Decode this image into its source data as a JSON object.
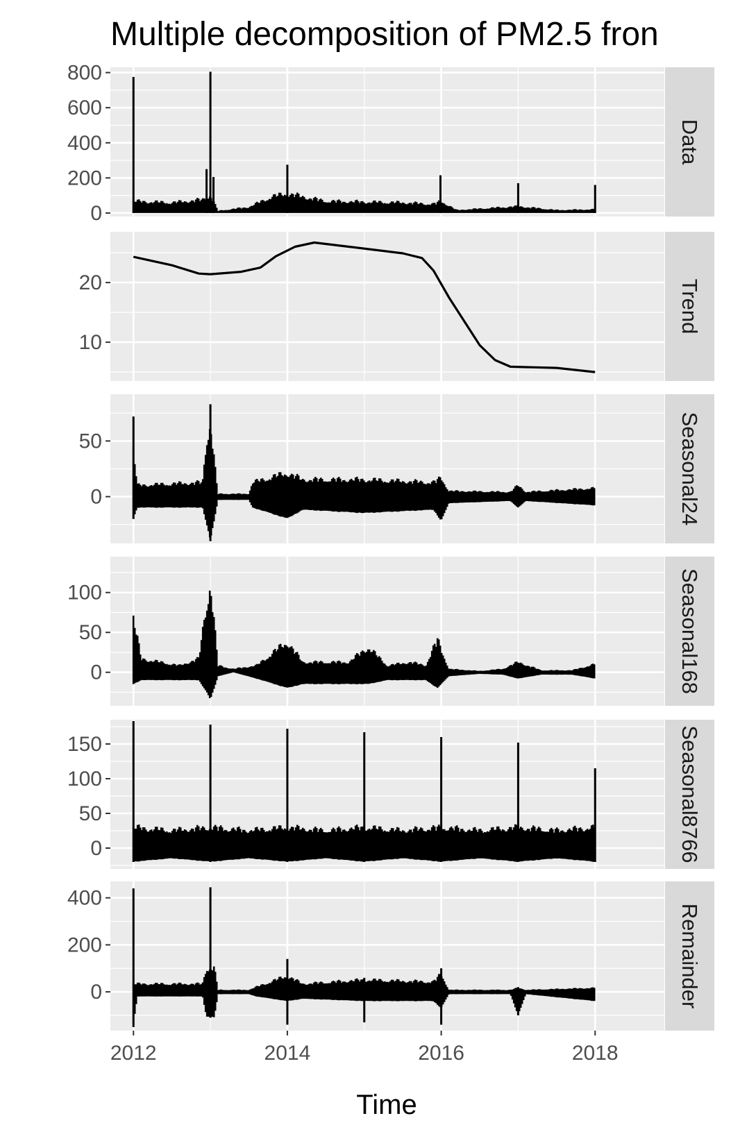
{
  "title": "Multiple decomposition of  PM2.5 fron",
  "chart_data": {
    "type": "line",
    "title": "Multiple decomposition of  PM2.5 fron",
    "xlabel": "Time",
    "ylabel": "",
    "x_ticks": [
      2012,
      2014,
      2016,
      2018
    ],
    "xlim": [
      2011.7,
      2018.9
    ],
    "grid": true,
    "legend": "none",
    "colors": {
      "line": "#000000",
      "panel": "#ebebeb",
      "grid": "#ffffff",
      "strip": "#d9d9d9",
      "tick_label": "#4d4d4d"
    },
    "panels": [
      {
        "name": "Data",
        "ylim": [
          -20,
          830
        ],
        "y_ticks": [
          0,
          200,
          400,
          600,
          800
        ],
        "envelope": [
          [
            2012.0,
            0,
            80
          ],
          [
            2012.5,
            0,
            70
          ],
          [
            2012.9,
            0,
            90
          ],
          [
            2013.0,
            0,
            120
          ],
          [
            2013.1,
            0,
            15
          ],
          [
            2013.5,
            0,
            40
          ],
          [
            2013.8,
            0,
            110
          ],
          [
            2014.0,
            0,
            130
          ],
          [
            2014.5,
            0,
            80
          ],
          [
            2015.0,
            0,
            75
          ],
          [
            2015.5,
            0,
            70
          ],
          [
            2015.9,
            0,
            60
          ],
          [
            2016.0,
            0,
            80
          ],
          [
            2016.2,
            0,
            20
          ],
          [
            2017.0,
            0,
            45
          ],
          [
            2017.5,
            0,
            20
          ],
          [
            2018.0,
            0,
            25
          ]
        ],
        "spikes": [
          [
            2012.0,
            0,
            775
          ],
          [
            2012.95,
            0,
            250
          ],
          [
            2013.0,
            0,
            805
          ],
          [
            2013.04,
            0,
            205
          ],
          [
            2014.0,
            0,
            275
          ],
          [
            2015.99,
            0,
            215
          ],
          [
            2017.0,
            0,
            170
          ],
          [
            2018.0,
            0,
            160
          ]
        ]
      },
      {
        "name": "Trend",
        "ylim": [
          3.5,
          28.5
        ],
        "y_ticks": [
          10,
          20
        ],
        "line": [
          [
            2012.0,
            24.3
          ],
          [
            2012.5,
            22.9
          ],
          [
            2012.85,
            21.5
          ],
          [
            2013.0,
            21.4
          ],
          [
            2013.4,
            21.8
          ],
          [
            2013.65,
            22.5
          ],
          [
            2013.85,
            24.4
          ],
          [
            2014.1,
            26.0
          ],
          [
            2014.35,
            26.7
          ],
          [
            2014.8,
            26.0
          ],
          [
            2015.5,
            24.9
          ],
          [
            2015.75,
            24.1
          ],
          [
            2015.9,
            22.0
          ],
          [
            2016.1,
            17.5
          ],
          [
            2016.5,
            9.5
          ],
          [
            2016.7,
            7.0
          ],
          [
            2016.9,
            5.9
          ],
          [
            2017.5,
            5.7
          ],
          [
            2018.0,
            5.0
          ]
        ]
      },
      {
        "name": "Seasonal24",
        "ylim": [
          -42,
          92
        ],
        "y_ticks": [
          0,
          50
        ],
        "envelope": [
          [
            2012.0,
            -20,
            50
          ],
          [
            2012.05,
            -10,
            12
          ],
          [
            2012.9,
            -10,
            15
          ],
          [
            2012.95,
            -25,
            60
          ],
          [
            2013.0,
            -40,
            80
          ],
          [
            2013.08,
            -10,
            15
          ],
          [
            2013.1,
            -3,
            3
          ],
          [
            2013.5,
            -3,
            3
          ],
          [
            2013.55,
            -10,
            15
          ],
          [
            2014.0,
            -20,
            25
          ],
          [
            2014.2,
            -12,
            18
          ],
          [
            2015.0,
            -15,
            18
          ],
          [
            2015.9,
            -12,
            15
          ],
          [
            2016.0,
            -22,
            20
          ],
          [
            2016.1,
            -6,
            6
          ],
          [
            2016.9,
            -4,
            5
          ],
          [
            2017.0,
            -10,
            12
          ],
          [
            2017.1,
            -4,
            5
          ],
          [
            2018.0,
            -8,
            9
          ]
        ],
        "spikes": [
          [
            2012.0,
            -20,
            72
          ],
          [
            2013.0,
            -40,
            83
          ]
        ]
      },
      {
        "name": "Seasonal168",
        "ylim": [
          -42,
          145
        ],
        "y_ticks": [
          0,
          50,
          100
        ],
        "envelope": [
          [
            2012.0,
            -15,
            80
          ],
          [
            2012.1,
            -10,
            20
          ],
          [
            2012.6,
            -10,
            10
          ],
          [
            2012.85,
            -10,
            20
          ],
          [
            2012.95,
            -25,
            100
          ],
          [
            2013.0,
            -35,
            135
          ],
          [
            2013.1,
            -5,
            10
          ],
          [
            2013.3,
            0,
            5
          ],
          [
            2013.6,
            -8,
            10
          ],
          [
            2014.0,
            -20,
            45
          ],
          [
            2014.2,
            -15,
            15
          ],
          [
            2014.8,
            -15,
            15
          ],
          [
            2015.05,
            -15,
            37
          ],
          [
            2015.3,
            -10,
            10
          ],
          [
            2015.6,
            -10,
            15
          ],
          [
            2015.8,
            -10,
            10
          ],
          [
            2015.95,
            -20,
            48
          ],
          [
            2016.1,
            -5,
            5
          ],
          [
            2016.5,
            -2,
            2
          ],
          [
            2016.8,
            -3,
            5
          ],
          [
            2017.0,
            -8,
            15
          ],
          [
            2017.3,
            -3,
            3
          ],
          [
            2017.7,
            -3,
            3
          ],
          [
            2018.0,
            -8,
            12
          ]
        ],
        "spikes": []
      },
      {
        "name": "Seasonal8766",
        "ylim": [
          -30,
          185
        ],
        "y_ticks": [
          0,
          50,
          100,
          150
        ],
        "envelope": [
          [
            2012.0,
            -20,
            35
          ],
          [
            2012.5,
            -15,
            30
          ],
          [
            2013.0,
            -20,
            35
          ],
          [
            2013.5,
            -15,
            30
          ],
          [
            2014.0,
            -20,
            35
          ],
          [
            2014.5,
            -15,
            30
          ],
          [
            2015.0,
            -20,
            35
          ],
          [
            2015.5,
            -15,
            30
          ],
          [
            2016.0,
            -20,
            35
          ],
          [
            2016.5,
            -15,
            30
          ],
          [
            2017.0,
            -20,
            35
          ],
          [
            2017.5,
            -15,
            30
          ],
          [
            2018.0,
            -20,
            35
          ]
        ],
        "spikes": [
          [
            2012.0,
            -20,
            183
          ],
          [
            2013.0,
            -20,
            178
          ],
          [
            2014.0,
            -20,
            172
          ],
          [
            2015.0,
            -20,
            167
          ],
          [
            2016.0,
            -20,
            160
          ],
          [
            2017.0,
            -20,
            152
          ],
          [
            2018.0,
            -20,
            115
          ]
        ]
      },
      {
        "name": "Remainder",
        "ylim": [
          -165,
          470
        ],
        "y_ticks": [
          0,
          200,
          400
        ],
        "envelope": [
          [
            2012.0,
            -140,
            40
          ],
          [
            2012.05,
            -20,
            40
          ],
          [
            2012.9,
            -20,
            40
          ],
          [
            2012.95,
            -110,
            120
          ],
          [
            2013.05,
            -110,
            120
          ],
          [
            2013.1,
            -10,
            10
          ],
          [
            2013.5,
            -10,
            10
          ],
          [
            2013.6,
            -20,
            25
          ],
          [
            2014.0,
            -40,
            80
          ],
          [
            2014.2,
            -30,
            40
          ],
          [
            2015.0,
            -40,
            60
          ],
          [
            2015.9,
            -40,
            50
          ],
          [
            2016.0,
            -70,
            90
          ],
          [
            2016.1,
            -10,
            10
          ],
          [
            2016.9,
            -10,
            10
          ],
          [
            2017.0,
            -100,
            20
          ],
          [
            2017.1,
            -10,
            10
          ],
          [
            2018.0,
            -40,
            20
          ]
        ],
        "spikes": [
          [
            2012.0,
            -150,
            440
          ],
          [
            2013.0,
            -110,
            445
          ],
          [
            2014.0,
            -140,
            140
          ],
          [
            2015.0,
            -130,
            60
          ],
          [
            2016.0,
            -140,
            100
          ],
          [
            2017.0,
            -100,
            20
          ]
        ]
      }
    ]
  }
}
